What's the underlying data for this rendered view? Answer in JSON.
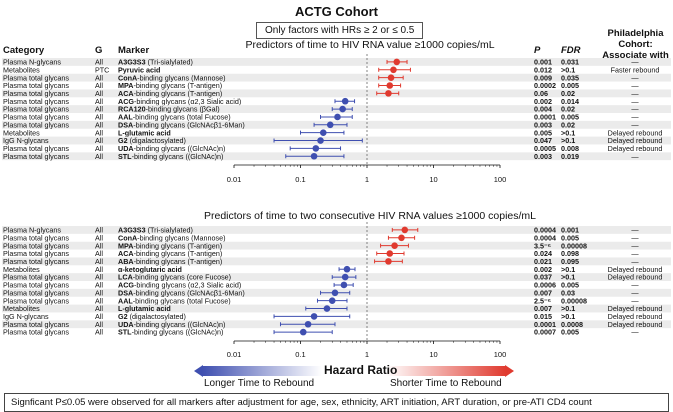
{
  "title": "ACTG Cohort",
  "subtitle_box": "Only factors with HRs ≥ 2 or ≤ 0.5",
  "headers": {
    "category": "Category",
    "group": "G",
    "marker": "Marker",
    "p": "P",
    "fdr": "FDR",
    "philly_1": "Philadelphia",
    "philly_2": "Cohort:",
    "philly_3": "Associate with"
  },
  "colors": {
    "increase": "#e03a2f",
    "decrease": "#3f4fb0",
    "stripe": "#ebebeb"
  },
  "hazard_label": "Hazard Ratio",
  "arrow_left": "Longer Time to Rebound",
  "arrow_right": "Shorter Time to Rebound",
  "footnote": "Signficant P≤0.05 were observed for all markers after adjustment for age, sex, ethnicity, ART initiation, ART duration, or pre-ATI CD4 count",
  "chart_data": [
    {
      "type": "forest",
      "title": "Predictors of time to HIV RNA value ≥1000 copies/mL",
      "x_scale": "log",
      "xlim": [
        0.01,
        100
      ],
      "x_ticks": [
        "0.01",
        "0.1",
        "1",
        "10",
        "100"
      ],
      "reference_line": 1,
      "rows": [
        {
          "category": "Plasma N-glycans",
          "g": "All",
          "marker": "A3G3S3",
          "marker_rest": " (Tri-sialylated)",
          "hr": 2.8,
          "lo": 2.0,
          "hi": 4.0,
          "p": "0.001",
          "fdr": "0.031",
          "philly": "—"
        },
        {
          "category": "Metabolites",
          "g": "PTC",
          "marker": "Pyruvic acid",
          "marker_rest": "",
          "hr": 2.5,
          "lo": 1.5,
          "hi": 4.5,
          "p": "0.012",
          "fdr": ">0.1",
          "philly": "Faster rebound"
        },
        {
          "category": "Plasma total glycans",
          "g": "All",
          "marker": "ConA",
          "marker_rest": "-binding glycans (Mannose)",
          "hr": 2.3,
          "lo": 1.5,
          "hi": 3.5,
          "p": "0.009",
          "fdr": "0.035",
          "philly": "—"
        },
        {
          "category": "Plasma total glycans",
          "g": "All",
          "marker": "MPA",
          "marker_rest": "-binding glycans (T-antigen)",
          "hr": 2.2,
          "lo": 1.5,
          "hi": 3.2,
          "p": "0.0002",
          "fdr": "0.005",
          "philly": "—"
        },
        {
          "category": "Plasma total glycans",
          "g": "All",
          "marker": "ACA",
          "marker_rest": "-binding glycans (T-antigen)",
          "hr": 2.1,
          "lo": 1.4,
          "hi": 3.0,
          "p": "0.06",
          "fdr": "0.02",
          "philly": "—"
        },
        {
          "category": "Plasma total glycans",
          "g": "All",
          "marker": "ACG",
          "marker_rest": "-binding glycans (α2,3 Sialic acid)",
          "hr": 0.47,
          "lo": 0.33,
          "hi": 0.65,
          "p": "0.002",
          "fdr": "0.014",
          "philly": "—"
        },
        {
          "category": "Plasma total glycans",
          "g": "All",
          "marker": "RCA120",
          "marker_rest": "-binding glycans (βGal)",
          "hr": 0.43,
          "lo": 0.3,
          "hi": 0.6,
          "p": "0.004",
          "fdr": "0.02",
          "philly": "—"
        },
        {
          "category": "Plasma total glycans",
          "g": "All",
          "marker": "AAL",
          "marker_rest": "-binding glycans (total Fucose)",
          "hr": 0.36,
          "lo": 0.2,
          "hi": 0.6,
          "p": "0.0001",
          "fdr": "0.005",
          "philly": "—"
        },
        {
          "category": "Plasma total glycans",
          "g": "All",
          "marker": "DSA",
          "marker_rest": "-binding glycans (GlcNAcβ1-6Man)",
          "hr": 0.28,
          "lo": 0.16,
          "hi": 0.5,
          "p": "0.003",
          "fdr": "0.02",
          "philly": "—"
        },
        {
          "category": "Metabolites",
          "g": "All",
          "marker": "L-glutamic acid",
          "marker_rest": "",
          "hr": 0.22,
          "lo": 0.1,
          "hi": 0.45,
          "p": "0.005",
          "fdr": ">0.1",
          "philly": "Delayed rebound"
        },
        {
          "category": "IgG N-glycans",
          "g": "All",
          "marker": "G2",
          "marker_rest": " (digalactosylated)",
          "hr": 0.2,
          "lo": 0.04,
          "hi": 0.85,
          "p": "0.047",
          "fdr": ">0.1",
          "philly": "Delayed rebound"
        },
        {
          "category": "Plasma total glycans",
          "g": "All",
          "marker": "UDA",
          "marker_rest": "-binding glycans ((GlcNAc)n)",
          "hr": 0.17,
          "lo": 0.07,
          "hi": 0.4,
          "p": "0.0005",
          "fdr": "0.008",
          "philly": "Delayed rebound"
        },
        {
          "category": "Plasma total glycans",
          "g": "All",
          "marker": "STL",
          "marker_rest": "-binding glycans ((GlcNAc)n)",
          "hr": 0.16,
          "lo": 0.06,
          "hi": 0.45,
          "p": "0.003",
          "fdr": "0.019",
          "philly": "—"
        }
      ]
    },
    {
      "type": "forest",
      "title": "Predictors of time to two consecutive HIV RNA values ≥1000 copies/mL",
      "x_scale": "log",
      "xlim": [
        0.01,
        100
      ],
      "x_ticks": [
        "0.01",
        "0.1",
        "1",
        "10",
        "100"
      ],
      "reference_line": 1,
      "rows": [
        {
          "category": "Plasma N-glycans",
          "g": "All",
          "marker": "A3G3S3",
          "marker_rest": " (Tri-sialylated)",
          "hr": 3.7,
          "lo": 2.4,
          "hi": 5.8,
          "p": "0.0004",
          "fdr": "0.001",
          "philly": "—"
        },
        {
          "category": "Plasma total glycans",
          "g": "All",
          "marker": "ConA",
          "marker_rest": "-binding glycans (Mannose)",
          "hr": 3.3,
          "lo": 2.1,
          "hi": 5.2,
          "p": "0.0004",
          "fdr": "0.005",
          "philly": "—"
        },
        {
          "category": "Plasma total glycans",
          "g": "All",
          "marker": "MPA",
          "marker_rest": "-binding glycans (T-antigen)",
          "hr": 2.6,
          "lo": 1.6,
          "hi": 4.2,
          "p": "3.5⁻⁶",
          "fdr": "0.00008",
          "philly": "—"
        },
        {
          "category": "Plasma total glycans",
          "g": "All",
          "marker": "ACA",
          "marker_rest": "-binding glycans (T-antigen)",
          "hr": 2.2,
          "lo": 1.4,
          "hi": 3.6,
          "p": "0.024",
          "fdr": "0.098",
          "philly": "—"
        },
        {
          "category": "Plasma total glycans",
          "g": "All",
          "marker": "ABA",
          "marker_rest": "-binding glycans (T-antigen)",
          "hr": 2.1,
          "lo": 1.3,
          "hi": 3.4,
          "p": "0.021",
          "fdr": "0.095",
          "philly": "—"
        },
        {
          "category": "Metabolites",
          "g": "All",
          "marker": "α-ketoglutaric acid",
          "marker_rest": "",
          "hr": 0.5,
          "lo": 0.38,
          "hi": 0.66,
          "p": "0.002",
          "fdr": ">0.1",
          "philly": "Delayed rebound"
        },
        {
          "category": "Plasma total glycans",
          "g": "All",
          "marker": "LCA",
          "marker_rest": "-binding glycans (core Fucose)",
          "hr": 0.47,
          "lo": 0.3,
          "hi": 0.68,
          "p": "0.037",
          "fdr": ">0.1",
          "philly": "Delayed rebound"
        },
        {
          "category": "Plasma total glycans",
          "g": "All",
          "marker": "ACG",
          "marker_rest": "-binding glycans (α2,3 Sialic acid)",
          "hr": 0.45,
          "lo": 0.32,
          "hi": 0.62,
          "p": "0.0006",
          "fdr": "0.005",
          "philly": "—"
        },
        {
          "category": "Plasma total glycans",
          "g": "All",
          "marker": "DSA",
          "marker_rest": "-binding glycans (GlcNAcβ1-6Man)",
          "hr": 0.33,
          "lo": 0.2,
          "hi": 0.55,
          "p": "0.007",
          "fdr": "0.03",
          "philly": "—"
        },
        {
          "category": "Plasma total glycans",
          "g": "All",
          "marker": "AAL",
          "marker_rest": "-binding glycans (total Fucose)",
          "hr": 0.3,
          "lo": 0.18,
          "hi": 0.5,
          "p": "2.5⁻⁶",
          "fdr": "0.00008",
          "philly": "—"
        },
        {
          "category": "Metabolites",
          "g": "All",
          "marker": "L-glutamic acid",
          "marker_rest": "",
          "hr": 0.25,
          "lo": 0.12,
          "hi": 0.5,
          "p": "0.007",
          "fdr": ">0.1",
          "philly": "Delayed rebound"
        },
        {
          "category": "IgG N-glycans",
          "g": "All",
          "marker": "G2",
          "marker_rest": " (digalactosylated)",
          "hr": 0.16,
          "lo": 0.04,
          "hi": 0.55,
          "p": "0.015",
          "fdr": ">0.1",
          "philly": "Delayed rebound"
        },
        {
          "category": "Plasma total glycans",
          "g": "All",
          "marker": "UDA",
          "marker_rest": "-binding glycans ((GlcNAc)n)",
          "hr": 0.13,
          "lo": 0.05,
          "hi": 0.33,
          "p": "0.0001",
          "fdr": "0.0008",
          "philly": "Delayed rebound"
        },
        {
          "category": "Plasma total glycans",
          "g": "All",
          "marker": "STL",
          "marker_rest": "-binding glycans ((GlcNAc)n)",
          "hr": 0.11,
          "lo": 0.04,
          "hi": 0.3,
          "p": "0.0007",
          "fdr": "0.005",
          "philly": "—"
        }
      ]
    }
  ]
}
